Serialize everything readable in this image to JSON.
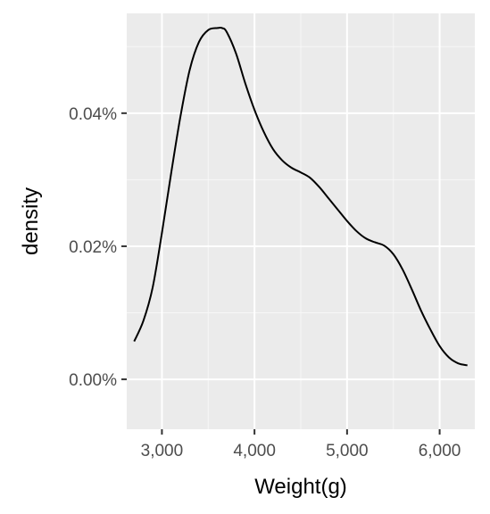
{
  "chart_data": {
    "type": "line",
    "title": "",
    "xlabel": "Weight(g)",
    "ylabel": "density",
    "xlim": [
      2620,
      6380
    ],
    "ylim": [
      -7.5e-05,
      0.00055
    ],
    "x_ticks": [
      {
        "value": 3000,
        "label": "3,000"
      },
      {
        "value": 4000,
        "label": "4,000"
      },
      {
        "value": 5000,
        "label": "5,000"
      },
      {
        "value": 6000,
        "label": "6,000"
      }
    ],
    "x_minor": [
      3500,
      4500,
      5500
    ],
    "y_ticks": [
      {
        "value": 0.0,
        "label": "0.00%"
      },
      {
        "value": 0.0002,
        "label": "0.02%"
      },
      {
        "value": 0.0004,
        "label": "0.04%"
      }
    ],
    "y_minor": [
      0.0001,
      0.0003,
      0.0005
    ],
    "grid": true,
    "series": [
      {
        "color": "#000000",
        "x": [
          2700,
          2800,
          2900,
          3000,
          3100,
          3200,
          3300,
          3400,
          3500,
          3600,
          3650,
          3700,
          3800,
          3900,
          4000,
          4100,
          4200,
          4300,
          4400,
          4500,
          4600,
          4700,
          4800,
          4900,
          5000,
          5100,
          5200,
          5300,
          5400,
          5500,
          5600,
          5700,
          5800,
          5900,
          6000,
          6100,
          6200,
          6300
        ],
        "y": [
          5.7e-05,
          8.8e-05,
          0.000138,
          0.00022,
          0.00031,
          0.000395,
          0.000465,
          0.000507,
          0.000525,
          0.000528,
          0.000528,
          0.000522,
          0.00049,
          0.000445,
          0.000405,
          0.000372,
          0.000346,
          0.000329,
          0.000318,
          0.000311,
          0.000303,
          0.000289,
          0.000272,
          0.000255,
          0.000238,
          0.000223,
          0.000212,
          0.000206,
          0.000201,
          0.000188,
          0.000165,
          0.000135,
          0.000103,
          7.5e-05,
          5e-05,
          3.3e-05,
          2.4e-05,
          2.1e-05
        ]
      }
    ]
  }
}
